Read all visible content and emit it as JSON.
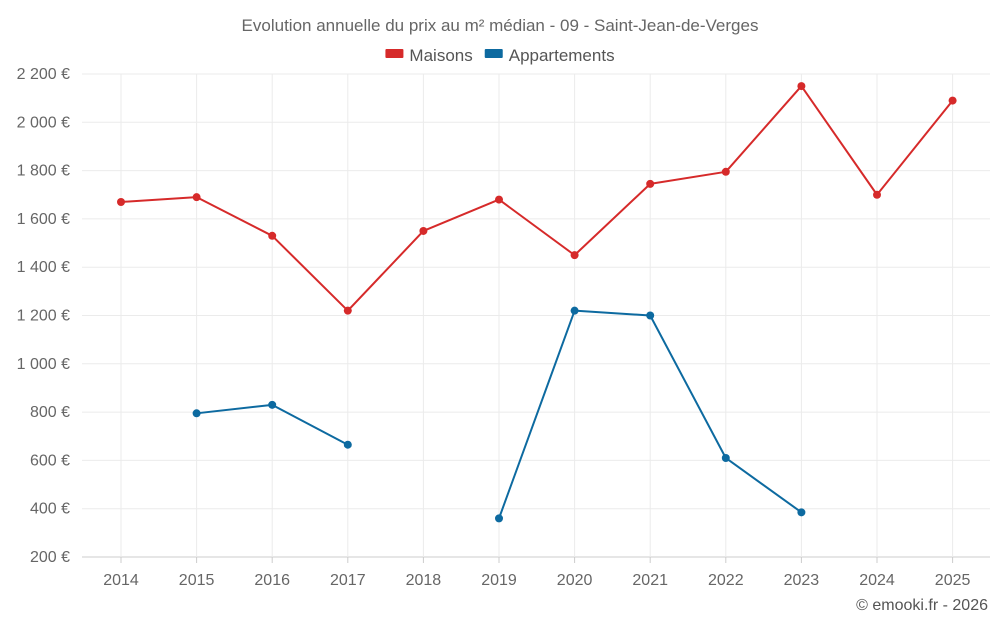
{
  "chart_data": {
    "type": "line",
    "title": "Evolution annuelle du prix au m² médian - 09 - Saint-Jean-de-Verges",
    "categories": [
      "2014",
      "2015",
      "2016",
      "2017",
      "2018",
      "2019",
      "2020",
      "2021",
      "2022",
      "2023",
      "2024",
      "2025"
    ],
    "y_ticks": [
      "200 €",
      "400 €",
      "600 €",
      "800 €",
      "1 000 €",
      "1 200 €",
      "1 400 €",
      "1 600 €",
      "1 800 €",
      "2 000 €",
      "2 200 €"
    ],
    "ylim": [
      200,
      2200
    ],
    "legend_position": "top-center",
    "series": [
      {
        "name": "Maisons",
        "color": "#d62a2a",
        "values": [
          1670,
          1690,
          1530,
          1220,
          1550,
          1680,
          1450,
          1745,
          1795,
          2150,
          1700,
          2090
        ]
      },
      {
        "name": "Appartements",
        "color": "#0d6aa0",
        "values": [
          null,
          795,
          830,
          665,
          null,
          360,
          1220,
          1200,
          610,
          385,
          null,
          null
        ]
      }
    ],
    "credit": "© emooki.fr - 2026"
  }
}
